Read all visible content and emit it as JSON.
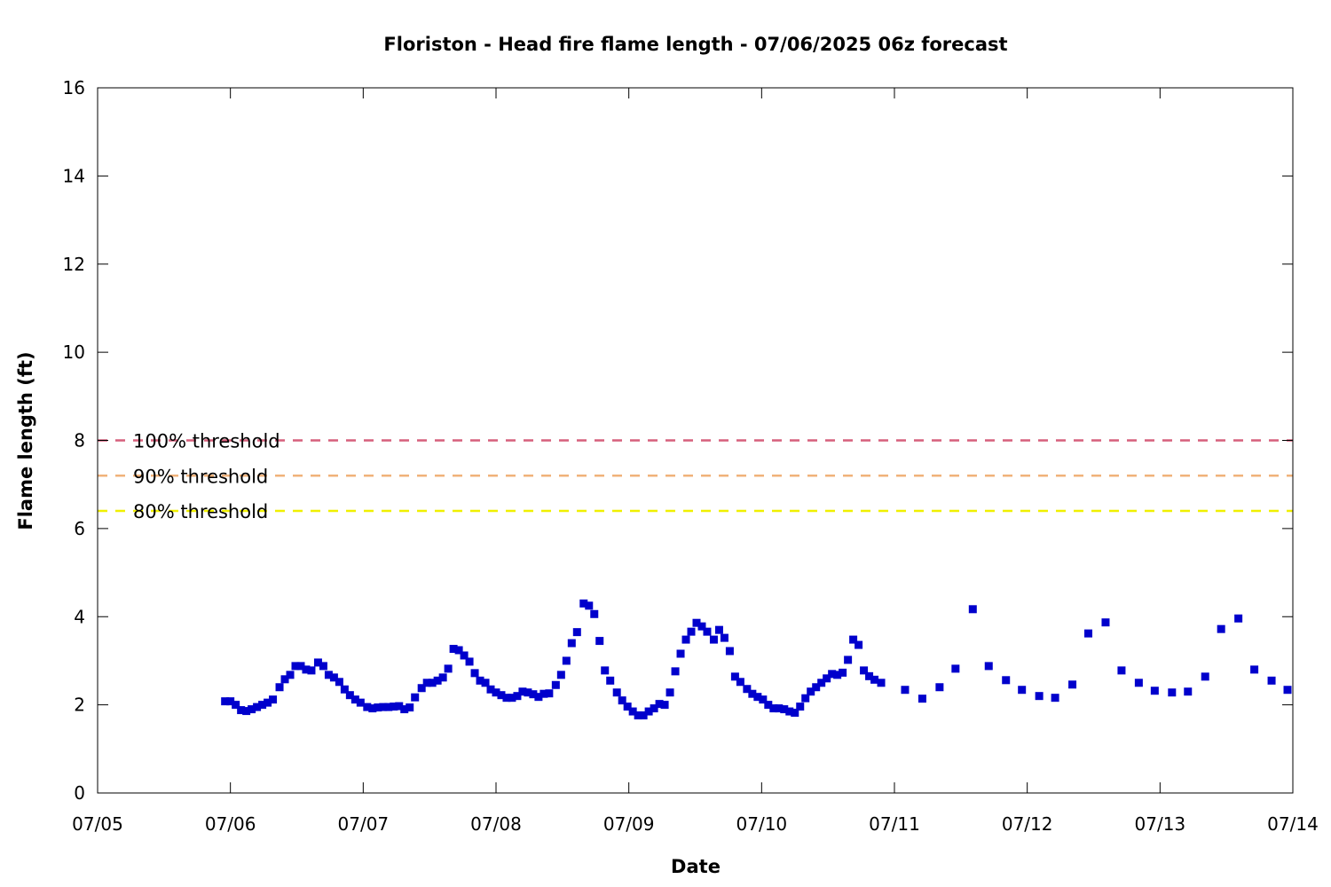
{
  "chart_data": {
    "type": "scatter",
    "title": "Floriston - Head fire flame length - 07/06/2025 06z forecast",
    "xlabel": "Date",
    "ylabel": "Flame length (ft)",
    "x_ticks": [
      "07/05",
      "07/06",
      "07/07",
      "07/08",
      "07/09",
      "07/10",
      "07/11",
      "07/12",
      "07/13",
      "07/14"
    ],
    "y_ticks": [
      "0",
      "2",
      "4",
      "6",
      "8",
      "10",
      "12",
      "14",
      "16"
    ],
    "ylim": [
      0,
      16
    ],
    "xlim": [
      "07/05 00z",
      "07/14 00z"
    ],
    "grid": false,
    "marker_color": "#0000cc",
    "thresholds": [
      {
        "label": "100% threshold",
        "value": 8.0,
        "color": "#d65f7b"
      },
      {
        "label": "90% threshold",
        "value": 7.2,
        "color": "#f0b27a"
      },
      {
        "label": "80% threshold",
        "value": 6.4,
        "color": "#f0f000"
      }
    ],
    "series": [
      {
        "x_unit": "days since 07/05 00z",
        "points": [
          [
            0.96,
            2.08
          ],
          [
            1.0,
            2.08
          ],
          [
            1.04,
            2.0
          ],
          [
            1.08,
            1.88
          ],
          [
            1.12,
            1.86
          ],
          [
            1.16,
            1.9
          ],
          [
            1.2,
            1.95
          ],
          [
            1.24,
            2.0
          ],
          [
            1.28,
            2.05
          ],
          [
            1.32,
            2.12
          ],
          [
            1.37,
            2.4
          ],
          [
            1.41,
            2.58
          ],
          [
            1.45,
            2.68
          ],
          [
            1.49,
            2.88
          ],
          [
            1.53,
            2.88
          ],
          [
            1.57,
            2.8
          ],
          [
            1.61,
            2.78
          ],
          [
            1.66,
            2.96
          ],
          [
            1.7,
            2.88
          ],
          [
            1.74,
            2.68
          ],
          [
            1.78,
            2.62
          ],
          [
            1.82,
            2.52
          ],
          [
            1.86,
            2.35
          ],
          [
            1.9,
            2.22
          ],
          [
            1.94,
            2.12
          ],
          [
            1.98,
            2.05
          ],
          [
            2.03,
            1.95
          ],
          [
            2.07,
            1.92
          ],
          [
            2.11,
            1.94
          ],
          [
            2.15,
            1.95
          ],
          [
            2.19,
            1.95
          ],
          [
            2.23,
            1.96
          ],
          [
            2.27,
            1.97
          ],
          [
            2.31,
            1.9
          ],
          [
            2.35,
            1.94
          ],
          [
            2.39,
            2.17
          ],
          [
            2.44,
            2.38
          ],
          [
            2.48,
            2.5
          ],
          [
            2.52,
            2.5
          ],
          [
            2.56,
            2.55
          ],
          [
            2.6,
            2.62
          ],
          [
            2.64,
            2.82
          ],
          [
            2.68,
            3.27
          ],
          [
            2.72,
            3.24
          ],
          [
            2.76,
            3.12
          ],
          [
            2.8,
            2.98
          ],
          [
            2.84,
            2.72
          ],
          [
            2.88,
            2.55
          ],
          [
            2.92,
            2.5
          ],
          [
            2.96,
            2.35
          ],
          [
            3.0,
            2.28
          ],
          [
            3.04,
            2.22
          ],
          [
            3.08,
            2.16
          ],
          [
            3.12,
            2.16
          ],
          [
            3.16,
            2.2
          ],
          [
            3.2,
            2.3
          ],
          [
            3.24,
            2.28
          ],
          [
            3.28,
            2.24
          ],
          [
            3.32,
            2.18
          ],
          [
            3.36,
            2.25
          ],
          [
            3.4,
            2.26
          ],
          [
            3.45,
            2.45
          ],
          [
            3.49,
            2.68
          ],
          [
            3.53,
            3.0
          ],
          [
            3.57,
            3.4
          ],
          [
            3.61,
            3.65
          ],
          [
            3.66,
            4.3
          ],
          [
            3.7,
            4.25
          ],
          [
            3.74,
            4.06
          ],
          [
            3.78,
            3.45
          ],
          [
            3.82,
            2.78
          ],
          [
            3.86,
            2.55
          ],
          [
            3.91,
            2.28
          ],
          [
            3.95,
            2.1
          ],
          [
            3.99,
            1.96
          ],
          [
            4.03,
            1.85
          ],
          [
            4.07,
            1.76
          ],
          [
            4.11,
            1.76
          ],
          [
            4.15,
            1.85
          ],
          [
            4.19,
            1.92
          ],
          [
            4.23,
            2.02
          ],
          [
            4.27,
            2.0
          ],
          [
            4.31,
            2.28
          ],
          [
            4.35,
            2.76
          ],
          [
            4.39,
            3.16
          ],
          [
            4.43,
            3.48
          ],
          [
            4.47,
            3.66
          ],
          [
            4.51,
            3.86
          ],
          [
            4.55,
            3.78
          ],
          [
            4.59,
            3.66
          ],
          [
            4.64,
            3.48
          ],
          [
            4.68,
            3.7
          ],
          [
            4.72,
            3.52
          ],
          [
            4.76,
            3.22
          ],
          [
            4.8,
            2.64
          ],
          [
            4.84,
            2.52
          ],
          [
            4.89,
            2.36
          ],
          [
            4.93,
            2.25
          ],
          [
            4.97,
            2.18
          ],
          [
            5.01,
            2.12
          ],
          [
            5.05,
            2.0
          ],
          [
            5.09,
            1.92
          ],
          [
            5.13,
            1.92
          ],
          [
            5.17,
            1.9
          ],
          [
            5.21,
            1.85
          ],
          [
            5.25,
            1.82
          ],
          [
            5.29,
            1.96
          ],
          [
            5.33,
            2.15
          ],
          [
            5.37,
            2.3
          ],
          [
            5.41,
            2.4
          ],
          [
            5.45,
            2.5
          ],
          [
            5.49,
            2.6
          ],
          [
            5.53,
            2.7
          ],
          [
            5.57,
            2.68
          ],
          [
            5.61,
            2.73
          ],
          [
            5.65,
            3.02
          ],
          [
            5.69,
            3.48
          ],
          [
            5.73,
            3.36
          ],
          [
            5.77,
            2.78
          ],
          [
            5.81,
            2.65
          ],
          [
            5.85,
            2.57
          ],
          [
            5.9,
            2.5
          ],
          [
            6.08,
            2.34
          ],
          [
            6.21,
            2.14
          ],
          [
            6.34,
            2.4
          ],
          [
            6.46,
            2.82
          ],
          [
            6.59,
            4.17
          ],
          [
            6.71,
            2.88
          ],
          [
            6.84,
            2.56
          ],
          [
            6.96,
            2.34
          ],
          [
            7.09,
            2.2
          ],
          [
            7.21,
            2.16
          ],
          [
            7.34,
            2.46
          ],
          [
            7.46,
            3.62
          ],
          [
            7.59,
            3.87
          ],
          [
            7.71,
            2.78
          ],
          [
            7.84,
            2.5
          ],
          [
            7.96,
            2.32
          ],
          [
            8.09,
            2.28
          ],
          [
            8.21,
            2.3
          ],
          [
            8.34,
            2.64
          ],
          [
            8.46,
            3.72
          ],
          [
            8.59,
            3.96
          ],
          [
            8.71,
            2.8
          ],
          [
            8.84,
            2.55
          ],
          [
            8.96,
            2.34
          ]
        ]
      }
    ]
  }
}
